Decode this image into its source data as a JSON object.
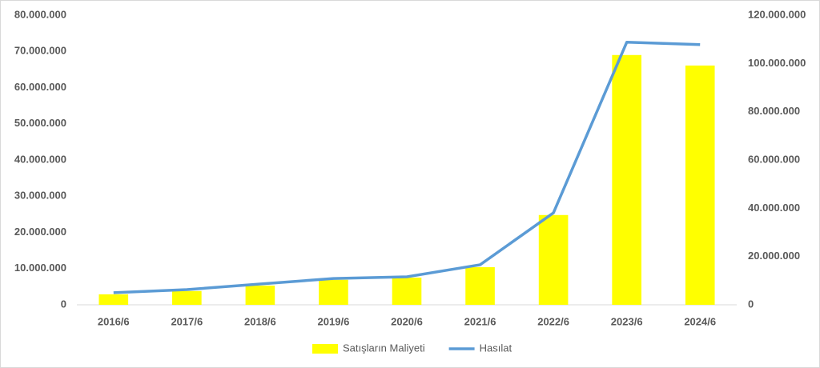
{
  "chart_data": {
    "type": "bar",
    "categories": [
      "2016/6",
      "2017/6",
      "2018/6",
      "2019/6",
      "2020/6",
      "2021/6",
      "2022/6",
      "2023/6",
      "2024/6"
    ],
    "series": [
      {
        "name": "Satışların Maliyeti",
        "color": "#ffff00",
        "type": "bar",
        "axis": "y",
        "values": [
          2900000,
          3800000,
          5300000,
          6900000,
          7500000,
          10400000,
          24800000,
          69000000,
          66100000
        ]
      },
      {
        "name": "Hasılat",
        "color": "#5b9bd5",
        "type": "line",
        "axis": "y2",
        "values": [
          5000000,
          6300000,
          8600000,
          10900000,
          11600000,
          16600000,
          38100000,
          108800000,
          107800000
        ]
      }
    ],
    "ylim": [
      0,
      80000000
    ],
    "yticks": [
      0,
      {
        "value": 10000000,
        "label": "10.000.000"
      },
      {
        "value": 20000000,
        "label": "20.000.000"
      },
      {
        "value": 30000000,
        "label": "30.000.000"
      },
      {
        "value": 40000000,
        "label": "40.000.000"
      },
      {
        "value": 50000000,
        "label": "50.000.000"
      },
      {
        "value": 60000000,
        "label": "60.000.000"
      },
      {
        "value": 70000000,
        "label": "70.000.000"
      },
      {
        "value": 80000000,
        "label": "80.000.000"
      }
    ],
    "y2lim": [
      0,
      120000000
    ],
    "y2ticks": [
      0,
      {
        "value": 20000000,
        "label": "20.000.000"
      },
      {
        "value": 40000000,
        "label": "40.000.000"
      },
      {
        "value": 60000000,
        "label": "60.000.000"
      },
      {
        "value": 80000000,
        "label": "80.000.000"
      },
      {
        "value": 100000000,
        "label": "100.000.000"
      },
      {
        "value": 120000000,
        "label": "120.000.000"
      }
    ],
    "grid": false,
    "legend": "bottom"
  }
}
